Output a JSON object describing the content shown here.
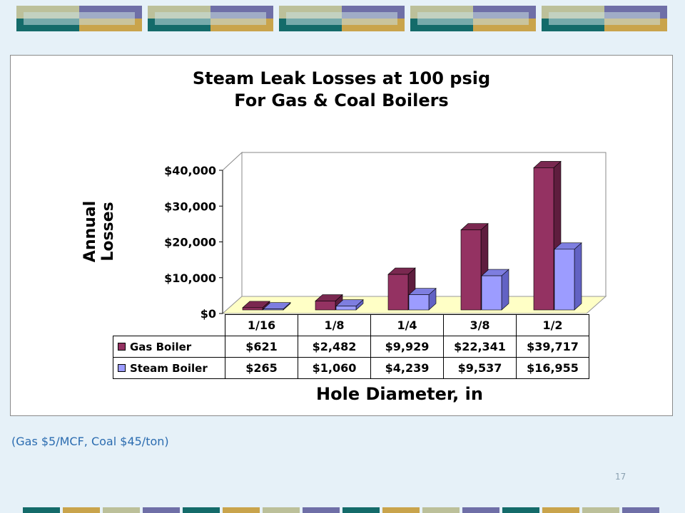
{
  "colors": {
    "gas": "#943262",
    "gas_dark": "#5e1d3e",
    "gas_top": "#7a2850",
    "steam": "#9c9cff",
    "steam_dark": "#6262c4",
    "steam_top": "#7e7ee0",
    "floor": "#ffffc6",
    "banner": [
      "#bcc09a",
      "#6f6fa7",
      "#146b6a",
      "#c9a44c"
    ]
  },
  "chart_data": {
    "type": "bar",
    "title": [
      "Steam Leak Losses at 100 psig",
      "For Gas & Coal Boilers"
    ],
    "ylabel": [
      "Annual",
      "Losses"
    ],
    "xlabel": "Hole Diameter, in",
    "categories": [
      "1/16",
      "1/8",
      "1/4",
      "3/8",
      "1/2"
    ],
    "ylim": [
      0,
      40000
    ],
    "yticks": [
      0,
      10000,
      20000,
      30000,
      40000
    ],
    "ytick_labels": [
      "$0",
      "$10,000",
      "$20,000",
      "$30,000",
      "$40,000"
    ],
    "series": [
      {
        "name": "Gas Boiler",
        "values": [
          621,
          2482,
          9929,
          22341,
          39717
        ],
        "labels": [
          "$621",
          "$2,482",
          "$9,929",
          "$22,341",
          "$39,717"
        ]
      },
      {
        "name": "Steam Boiler",
        "values": [
          265,
          1060,
          4239,
          9537,
          16955
        ],
        "labels": [
          "$265",
          "$1,060",
          "$4,239",
          "$9,537",
          "$16,955"
        ]
      }
    ],
    "style": "3d-clustered-column-with-data-table"
  },
  "footnote": "(Gas $5/MCF, Coal $45/ton)",
  "page_number": "17"
}
